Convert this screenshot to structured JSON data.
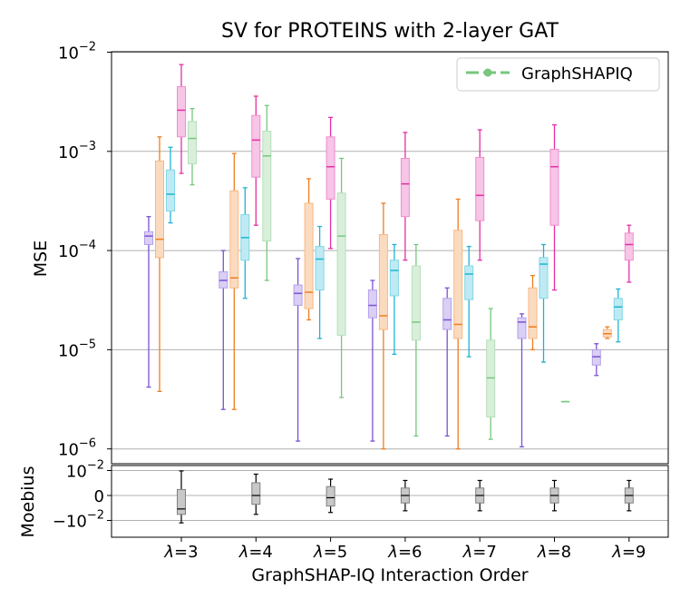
{
  "chart_data": [
    {
      "type": "box",
      "title": "SV for PROTEINS with 2-layer GAT",
      "xlabel": "GraphSHAP-IQ Interaction Order",
      "ylabel": "MSE",
      "yscale": "log",
      "ylim": [
        8e-07,
        0.01
      ],
      "grid": "y",
      "yticks": [
        {
          "base": "10",
          "exp": "−2"
        },
        {
          "base": "10",
          "exp": "−3"
        },
        {
          "base": "10",
          "exp": "−4"
        },
        {
          "base": "10",
          "exp": "−5"
        },
        {
          "base": "10",
          "exp": "−6"
        }
      ],
      "ytick_values": [
        0.01,
        0.001,
        0.0001,
        1e-05,
        1e-06
      ],
      "categories": [
        {
          "lambda": "λ",
          "eq": "=3"
        },
        {
          "lambda": "λ",
          "eq": "=4"
        },
        {
          "lambda": "λ",
          "eq": "=5"
        },
        {
          "lambda": "λ",
          "eq": "=6"
        },
        {
          "lambda": "λ",
          "eq": "=7"
        },
        {
          "lambda": "λ",
          "eq": "=8"
        },
        {
          "lambda": "λ",
          "eq": "=9"
        }
      ],
      "legend": {
        "label": "GraphSHAPIQ",
        "color": "#77c77d",
        "placement": "top-right"
      },
      "series": [
        {
          "name": "purple",
          "color": "#7b52d6",
          "boxes": [
            {
              "group": 0,
              "whislo": 4.2e-06,
              "q1": 0.000115,
              "med": 0.00014,
              "q3": 0.000155,
              "whishi": 0.00022
            },
            {
              "group": 1,
              "whislo": 2.5e-06,
              "q1": 4.2e-05,
              "med": 5e-05,
              "q3": 6.1e-05,
              "whishi": 0.0001
            },
            {
              "group": 2,
              "whislo": 1.2e-06,
              "q1": 2.8e-05,
              "med": 3.7e-05,
              "q3": 4.5e-05,
              "whishi": 8.3e-05
            },
            {
              "group": 3,
              "whislo": 1.2e-06,
              "q1": 2.1e-05,
              "med": 2.8e-05,
              "q3": 4e-05,
              "whishi": 5e-05
            },
            {
              "group": 4,
              "whislo": 1.35e-06,
              "q1": 1.6e-05,
              "med": 2e-05,
              "q3": 3.3e-05,
              "whishi": 4.2e-05
            },
            {
              "group": 5,
              "whislo": 1.05e-06,
              "q1": 1.3e-05,
              "med": 1.9e-05,
              "q3": 2.1e-05,
              "whishi": 2.3e-05
            },
            {
              "group": 6,
              "whislo": 5.5e-06,
              "q1": 7e-06,
              "med": 8.5e-06,
              "q3": 1e-05,
              "whishi": 1.15e-05
            }
          ]
        },
        {
          "name": "orange",
          "color": "#f07d1e",
          "boxes": [
            {
              "group": 0,
              "whislo": 3.8e-06,
              "q1": 8.5e-05,
              "med": 0.00013,
              "q3": 0.0008,
              "whishi": 0.0014
            },
            {
              "group": 1,
              "whislo": 2.5e-06,
              "q1": 4.2e-05,
              "med": 5.3e-05,
              "q3": 0.0004,
              "whishi": 0.00095
            },
            {
              "group": 2,
              "whislo": 2e-05,
              "q1": 2.6e-05,
              "med": 3.8e-05,
              "q3": 0.0003,
              "whishi": 0.00053
            },
            {
              "group": 3,
              "whislo": 1e-06,
              "q1": 1.6e-05,
              "med": 2.2e-05,
              "q3": 0.000145,
              "whishi": 0.0003
            },
            {
              "group": 4,
              "whislo": 1e-06,
              "q1": 1.3e-05,
              "med": 1.8e-05,
              "q3": 0.00016,
              "whishi": 0.00033
            },
            {
              "group": 5,
              "whislo": 1e-05,
              "q1": 1.3e-05,
              "med": 1.7e-05,
              "q3": 4.2e-05,
              "whishi": 5.6e-05
            },
            {
              "group": 6,
              "whislo": 1.3e-05,
              "q1": 1.35e-05,
              "med": 1.45e-05,
              "q3": 1.6e-05,
              "whishi": 1.7e-05
            }
          ]
        },
        {
          "name": "cyan",
          "color": "#1bb4d4",
          "boxes": [
            {
              "group": 0,
              "whislo": 0.00019,
              "q1": 0.00025,
              "med": 0.00037,
              "q3": 0.00065,
              "whishi": 0.0011
            },
            {
              "group": 1,
              "whislo": 3.3e-05,
              "q1": 8e-05,
              "med": 0.000135,
              "q3": 0.00023,
              "whishi": 0.00043
            },
            {
              "group": 2,
              "whislo": 1.3e-05,
              "q1": 4e-05,
              "med": 8.2e-05,
              "q3": 0.00011,
              "whishi": 0.000175
            },
            {
              "group": 3,
              "whislo": 9e-06,
              "q1": 3.5e-05,
              "med": 6.3e-05,
              "q3": 8e-05,
              "whishi": 0.000115
            },
            {
              "group": 4,
              "whislo": 8.5e-06,
              "q1": 3.2e-05,
              "med": 5.8e-05,
              "q3": 7e-05,
              "whishi": 0.00011
            },
            {
              "group": 5,
              "whislo": 7.5e-06,
              "q1": 3.3e-05,
              "med": 7.3e-05,
              "q3": 8.5e-05,
              "whishi": 0.000115
            },
            {
              "group": 6,
              "whislo": 1.2e-05,
              "q1": 2e-05,
              "med": 2.7e-05,
              "q3": 3.3e-05,
              "whishi": 4.1e-05
            }
          ]
        },
        {
          "name": "magenta",
          "color": "#e32fa6",
          "boxes": [
            {
              "group": 0,
              "whislo": 0.0006,
              "q1": 0.0014,
              "med": 0.0026,
              "q3": 0.0045,
              "whishi": 0.0075
            },
            {
              "group": 1,
              "whislo": 0.00018,
              "q1": 0.00055,
              "med": 0.0013,
              "q3": 0.0023,
              "whishi": 0.0036
            },
            {
              "group": 2,
              "whislo": 0.000105,
              "q1": 0.00033,
              "med": 0.0007,
              "q3": 0.0014,
              "whishi": 0.0022
            },
            {
              "group": 3,
              "whislo": 8e-05,
              "q1": 0.00022,
              "med": 0.00047,
              "q3": 0.00085,
              "whishi": 0.00155
            },
            {
              "group": 4,
              "whislo": 8e-05,
              "q1": 0.0002,
              "med": 0.00036,
              "q3": 0.00087,
              "whishi": 0.00165
            },
            {
              "group": 5,
              "whislo": 4e-05,
              "q1": 0.00018,
              "med": 0.0007,
              "q3": 0.00105,
              "whishi": 0.00185
            },
            {
              "group": 6,
              "whislo": 4.8e-05,
              "q1": 8e-05,
              "med": 0.000115,
              "q3": 0.00015,
              "whishi": 0.00018
            }
          ]
        },
        {
          "name": "green",
          "color": "#77c77d",
          "boxes": [
            {
              "group": 0,
              "whislo": 0.00046,
              "q1": 0.00075,
              "med": 0.00135,
              "q3": 0.002,
              "whishi": 0.0027
            },
            {
              "group": 1,
              "whislo": 5e-05,
              "q1": 0.000125,
              "med": 0.0009,
              "q3": 0.0016,
              "whishi": 0.0029
            },
            {
              "group": 2,
              "whislo": 3.3e-06,
              "q1": 1.4e-05,
              "med": 0.00014,
              "q3": 0.00038,
              "whishi": 0.00085
            },
            {
              "group": 3,
              "whislo": 1.35e-06,
              "q1": 1.25e-05,
              "med": 1.9e-05,
              "q3": 7e-05,
              "whishi": 0.000115
            },
            {
              "group": 4,
              "whislo": 1.25e-06,
              "q1": 2.1e-06,
              "med": 5.2e-06,
              "q3": 1.25e-05,
              "whishi": 2.6e-05
            },
            {
              "group": 5,
              "whislo": 3e-06,
              "q1": 3e-06,
              "med": 3e-06,
              "q3": 3e-06,
              "whishi": 3e-06
            }
          ]
        }
      ]
    },
    {
      "type": "box",
      "ylabel": "Moebius",
      "yscale": "symlog",
      "ylim": [
        -0.02,
        0.02
      ],
      "yticks": [
        {
          "sign": "",
          "base": "10",
          "exp": "−2"
        },
        {
          "sign": "",
          "base": "0",
          "exp": ""
        },
        {
          "sign": "−",
          "base": "10",
          "exp": "−2"
        }
      ],
      "color": "#808080",
      "boxes": [
        {
          "group": 0,
          "whislo": -0.0138,
          "q1": -0.0045,
          "med": -0.0022,
          "q3": 0.0008,
          "whishi": 0.0095
        },
        {
          "group": 1,
          "whislo": -0.0045,
          "q1": -0.0012,
          "med": 0.0,
          "q3": 0.002,
          "whishi": 0.0062
        },
        {
          "group": 2,
          "whislo": -0.0035,
          "q1": -0.0015,
          "med": -0.0003,
          "q3": 0.0012,
          "whishi": 0.0032
        },
        {
          "group": 3,
          "whislo": -0.0028,
          "q1": -0.001,
          "med": 0.0,
          "q3": 0.001,
          "whishi": 0.0027
        },
        {
          "group": 4,
          "whislo": -0.0028,
          "q1": -0.001,
          "med": 0.0,
          "q3": 0.001,
          "whishi": 0.0027
        },
        {
          "group": 5,
          "whislo": -0.0028,
          "q1": -0.001,
          "med": 0.0,
          "q3": 0.001,
          "whishi": 0.0027
        },
        {
          "group": 6,
          "whislo": -0.0028,
          "q1": -0.001,
          "med": 0.0,
          "q3": 0.001,
          "whishi": 0.0027
        }
      ]
    }
  ]
}
